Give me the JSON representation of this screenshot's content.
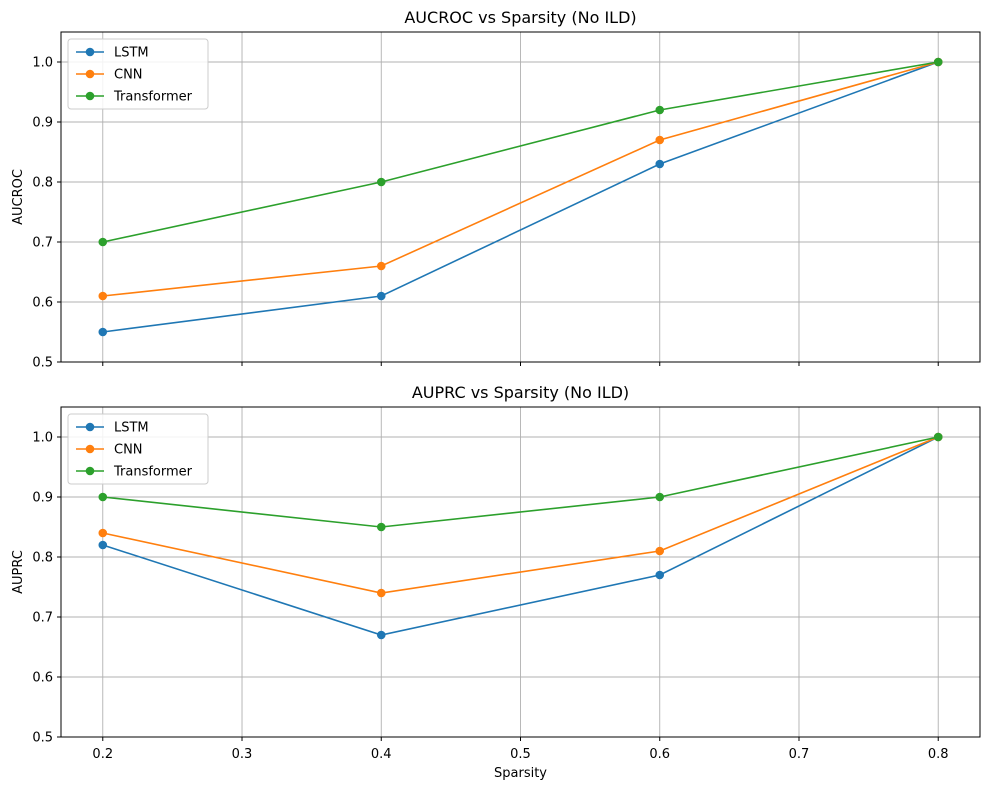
{
  "chart_data": [
    {
      "type": "line",
      "title": "AUCROC vs Sparsity (No ILD)",
      "xlabel": "",
      "ylabel": "AUCROC",
      "x": [
        0.2,
        0.4,
        0.6,
        0.8
      ],
      "xlim": [
        0.17,
        0.83
      ],
      "ylim": [
        0.5,
        1.05
      ],
      "xticks": [
        0.2,
        0.3,
        0.4,
        0.5,
        0.6,
        0.7,
        0.8
      ],
      "xtick_labels_visible": false,
      "yticks": [
        0.5,
        0.6,
        0.7,
        0.8,
        0.9,
        1.0
      ],
      "ytick_labels": [
        "0.5",
        "0.6",
        "0.7",
        "0.8",
        "0.9",
        "1.0"
      ],
      "grid": true,
      "legend_position": "upper-left",
      "series": [
        {
          "name": "LSTM",
          "color": "#1f77b4",
          "values": [
            0.55,
            0.61,
            0.83,
            1.0
          ]
        },
        {
          "name": "CNN",
          "color": "#ff7f0e",
          "values": [
            0.61,
            0.66,
            0.87,
            1.0
          ]
        },
        {
          "name": "Transformer",
          "color": "#2ca02c",
          "values": [
            0.7,
            0.8,
            0.92,
            1.0
          ]
        }
      ]
    },
    {
      "type": "line",
      "title": "AUPRC vs Sparsity (No ILD)",
      "xlabel": "Sparsity",
      "ylabel": "AUPRC",
      "x": [
        0.2,
        0.4,
        0.6,
        0.8
      ],
      "xlim": [
        0.17,
        0.83
      ],
      "ylim": [
        0.5,
        1.05
      ],
      "xticks": [
        0.2,
        0.3,
        0.4,
        0.5,
        0.6,
        0.7,
        0.8
      ],
      "xtick_labels": [
        "0.2",
        "0.3",
        "0.4",
        "0.5",
        "0.6",
        "0.7",
        "0.8"
      ],
      "xtick_labels_visible": true,
      "yticks": [
        0.5,
        0.6,
        0.7,
        0.8,
        0.9,
        1.0
      ],
      "ytick_labels": [
        "0.5",
        "0.6",
        "0.7",
        "0.8",
        "0.9",
        "1.0"
      ],
      "grid": true,
      "legend_position": "upper-left",
      "series": [
        {
          "name": "LSTM",
          "color": "#1f77b4",
          "values": [
            0.82,
            0.67,
            0.77,
            1.0
          ]
        },
        {
          "name": "CNN",
          "color": "#ff7f0e",
          "values": [
            0.84,
            0.74,
            0.81,
            1.0
          ]
        },
        {
          "name": "Transformer",
          "color": "#2ca02c",
          "values": [
            0.9,
            0.85,
            0.9,
            1.0
          ]
        }
      ]
    }
  ]
}
